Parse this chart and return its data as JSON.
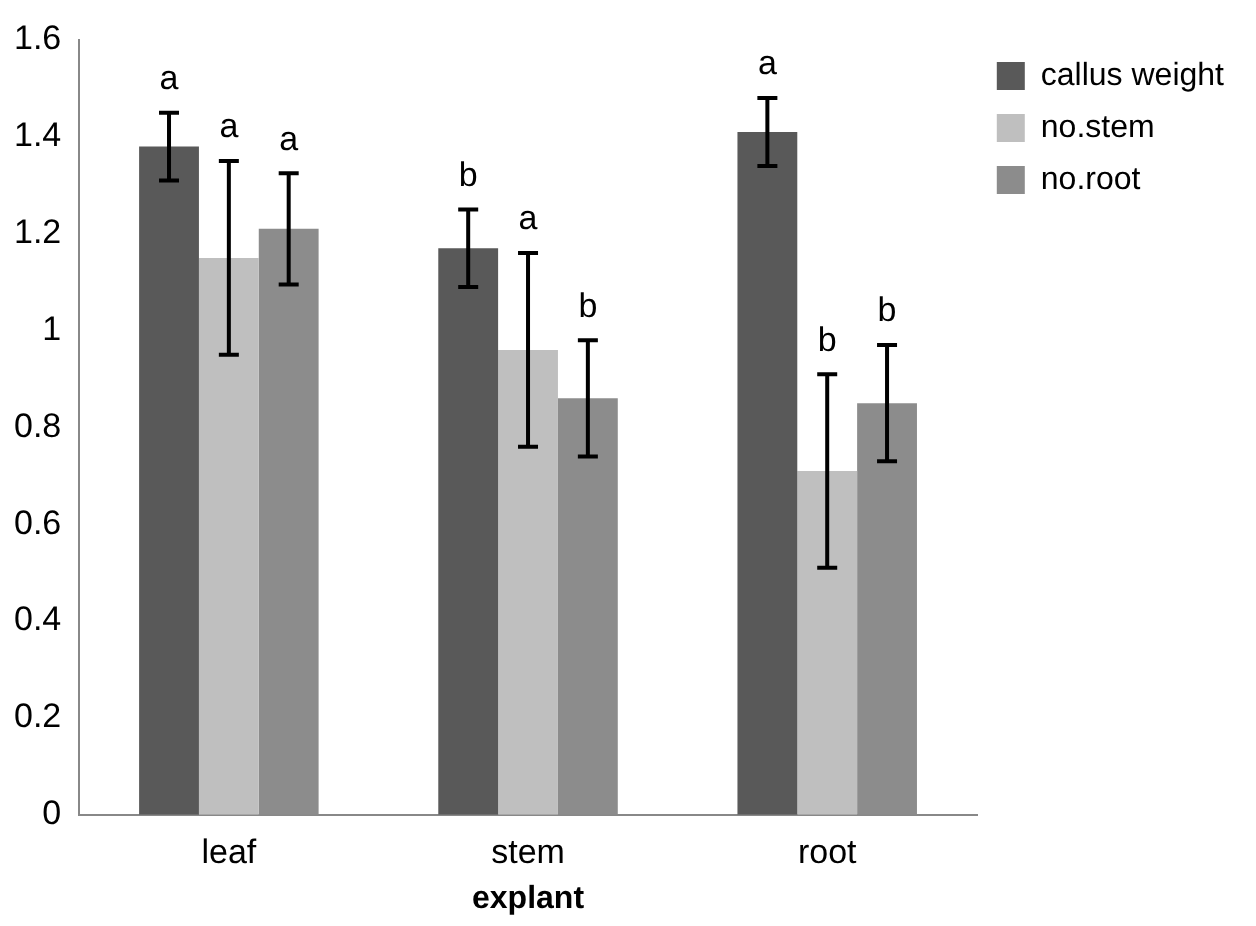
{
  "chart_data": {
    "type": "bar",
    "xlabel": "explant",
    "categories": [
      "leaf",
      "stem",
      "root"
    ],
    "series": [
      {
        "name": "callus weight",
        "color": "#595959",
        "values": [
          1.38,
          1.17,
          1.41
        ],
        "errors": [
          0.07,
          0.08,
          0.07
        ]
      },
      {
        "name": "no.stem",
        "color": "#bfbfbf",
        "values": [
          1.15,
          0.96,
          0.71
        ],
        "errors": [
          0.2,
          0.2,
          0.2
        ]
      },
      {
        "name": "no.root",
        "color": "#8c8c8c",
        "values": [
          1.21,
          0.86,
          0.85
        ],
        "errors": [
          0.115,
          0.12,
          0.12
        ]
      }
    ],
    "ylim": [
      0,
      1.6
    ],
    "yticks": [
      0,
      0.2,
      0.4,
      0.6,
      0.8,
      1,
      1.2,
      1.4,
      1.6
    ],
    "grid": false,
    "legend": "top right",
    "annotations": [
      "a",
      "a",
      "a",
      "b",
      "a",
      "b",
      "a",
      "b",
      "b"
    ]
  }
}
